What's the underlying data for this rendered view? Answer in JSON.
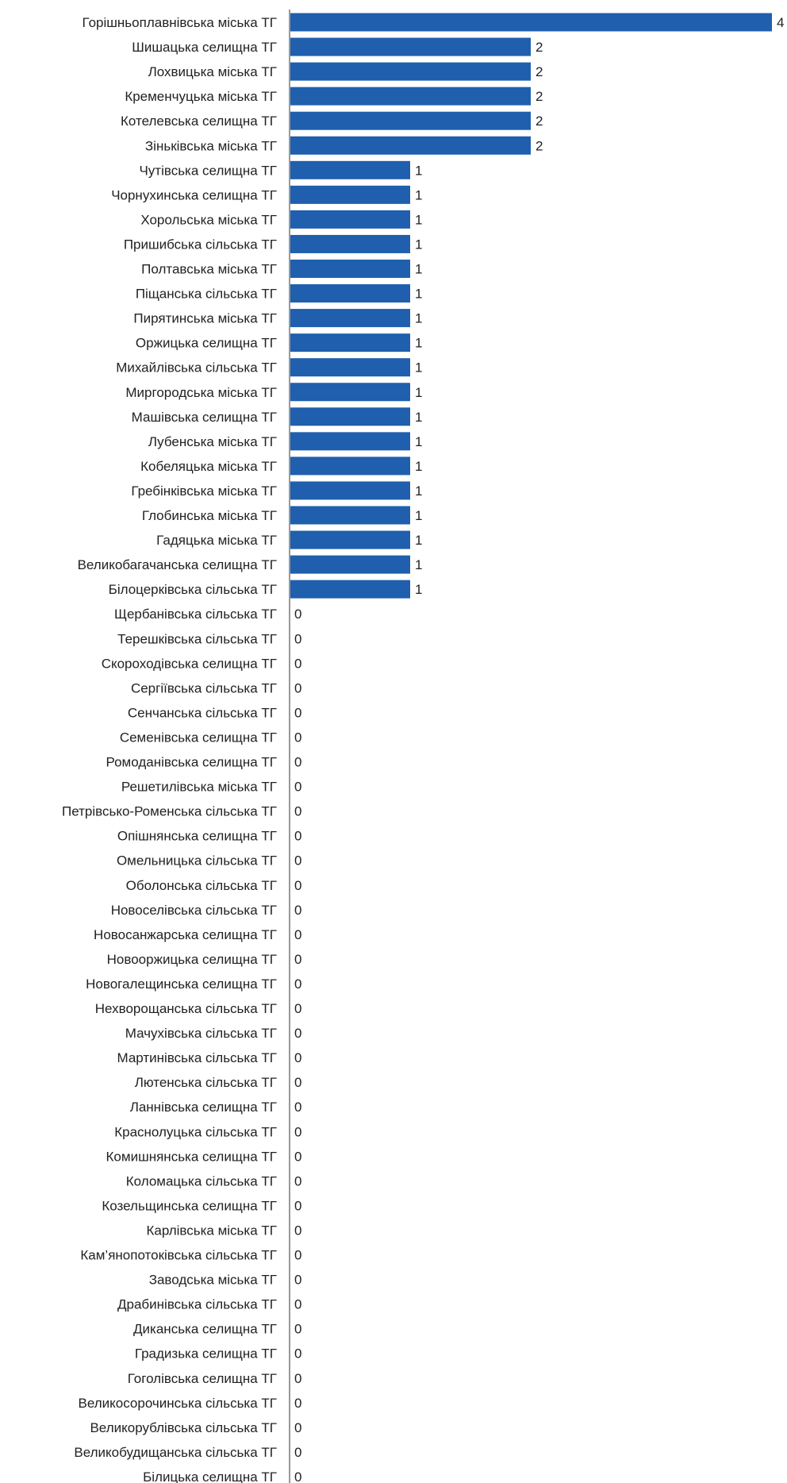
{
  "chart_data": {
    "type": "bar",
    "orientation": "horizontal",
    "title": "",
    "xlabel": "",
    "ylabel": "",
    "xlim": [
      0,
      4
    ],
    "grid": false,
    "legend": "none",
    "bar_color": "#1f5fad",
    "axis_color": "#999999",
    "label_color": "#222222",
    "categories": [
      "Горішньоплавнівська міська ТГ",
      "Шишацька селищна ТГ",
      "Лохвицька міська ТГ",
      "Кременчуцька міська ТГ",
      "Котелевська селищна ТГ",
      "Зіньківська міська ТГ",
      "Чутівська селищна ТГ",
      "Чорнухинська селищна ТГ",
      "Хорольська міська ТГ",
      "Пришибська сільська ТГ",
      "Полтавська міська ТГ",
      "Піщанська сільська ТГ",
      "Пирятинська міська ТГ",
      "Оржицька селищна ТГ",
      "Михайлівська сільська ТГ",
      "Миргородська міська ТГ",
      "Машівська селищна ТГ",
      "Лубенська міська ТГ",
      "Кобеляцька міська ТГ",
      "Гребінківська міська ТГ",
      "Глобинська міська ТГ",
      "Гадяцька міська ТГ",
      "Великобагачанська селищна ТГ",
      "Білоцерківська сільська ТГ",
      "Щербанівська сільська ТГ",
      "Терешківська сільська ТГ",
      "Скороходівська селищна ТГ",
      "Сергіївська сільська ТГ",
      "Сенчанська сільська ТГ",
      "Семенівська селищна ТГ",
      "Ромоданівська селищна ТГ",
      "Решетилівська міська ТГ",
      "Петрівсько-Роменська сільська ТГ",
      "Опішнянська селищна ТГ",
      "Омельницька сільська ТГ",
      "Оболонська сільська ТГ",
      "Новоселівська сільська ТГ",
      "Новосанжарська селищна ТГ",
      "Новооржицька селищна ТГ",
      "Новогалещинська селищна ТГ",
      "Нехворощанська сільська ТГ",
      "Мачухівська сільська ТГ",
      "Мартинівська сільська ТГ",
      "Лютенська сільська ТГ",
      "Ланнівська селищна ТГ",
      "Краснолуцька сільська ТГ",
      "Комишнянська селищна ТГ",
      "Коломацька сільська ТГ",
      "Козельщинська селищна ТГ",
      "Карлівська міська ТГ",
      "Кам’янопотоківська сільська ТГ",
      "Заводська міська ТГ",
      "Драбинівська сільська ТГ",
      "Диканська селищна ТГ",
      "Градизька селищна ТГ",
      "Гоголівська селищна ТГ",
      "Великосорочинська сільська ТГ",
      "Великорублівська сільська ТГ",
      "Великобудищанська сільська ТГ",
      "Білицька селищна ТГ"
    ],
    "values": [
      4,
      2,
      2,
      2,
      2,
      2,
      1,
      1,
      1,
      1,
      1,
      1,
      1,
      1,
      1,
      1,
      1,
      1,
      1,
      1,
      1,
      1,
      1,
      1,
      0,
      0,
      0,
      0,
      0,
      0,
      0,
      0,
      0,
      0,
      0,
      0,
      0,
      0,
      0,
      0,
      0,
      0,
      0,
      0,
      0,
      0,
      0,
      0,
      0,
      0,
      0,
      0,
      0,
      0,
      0,
      0,
      0,
      0,
      0,
      0
    ]
  }
}
